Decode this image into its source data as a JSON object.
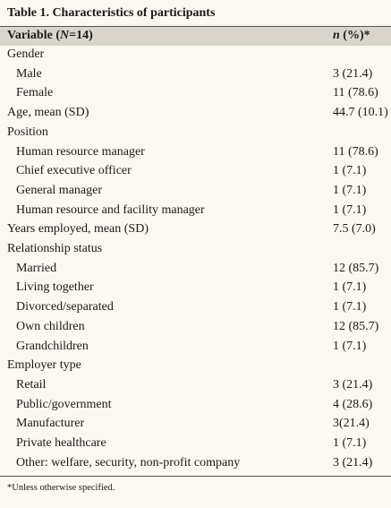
{
  "table": {
    "title": "Table 1. Characteristics of participants",
    "header": {
      "variable": [
        "Variable (",
        "N",
        "=14)"
      ],
      "value": [
        "n",
        " (%)*"
      ]
    },
    "rows": [
      {
        "label": "Gender",
        "items": [
          {
            "label": "Male",
            "value": "3 (21.4)"
          },
          {
            "label": "Female",
            "value": "11 (78.6)"
          }
        ]
      },
      {
        "label": "Age, mean (SD)",
        "value": "44.7 (10.1)"
      },
      {
        "label": "Position",
        "items": [
          {
            "label": "Human resource manager",
            "value": "11 (78.6)"
          },
          {
            "label": "Chief executive officer",
            "value": "1 (7.1)"
          },
          {
            "label": "General manager",
            "value": "1 (7.1)"
          },
          {
            "label": "Human resource and facility manager",
            "value": "1 (7.1)"
          }
        ]
      },
      {
        "label": "Years employed, mean (SD)",
        "value": "7.5 (7.0)"
      },
      {
        "label": "Relationship status",
        "items": [
          {
            "label": "Married",
            "value": "12 (85.7)"
          },
          {
            "label": "Living together",
            "value": "1 (7.1)"
          },
          {
            "label": "Divorced/separated",
            "value": "1 (7.1)"
          },
          {
            "label": "Own children",
            "value": "12 (85.7)"
          },
          {
            "label": "Grandchildren",
            "value": "1 (7.1)"
          }
        ]
      },
      {
        "label": "Employer type",
        "items": [
          {
            "label": "Retail",
            "value": "3 (21.4)"
          },
          {
            "label": "Public/government",
            "value": "4 (28.6)"
          },
          {
            "label": "Manufacturer",
            "value": "3(21.4)"
          },
          {
            "label": "Private healthcare",
            "value": "1 (7.1)"
          },
          {
            "label": "Other: welfare, security, non-profit company",
            "value": "3 (21.4)"
          }
        ]
      }
    ],
    "footnote": "*Unless otherwise specified."
  }
}
